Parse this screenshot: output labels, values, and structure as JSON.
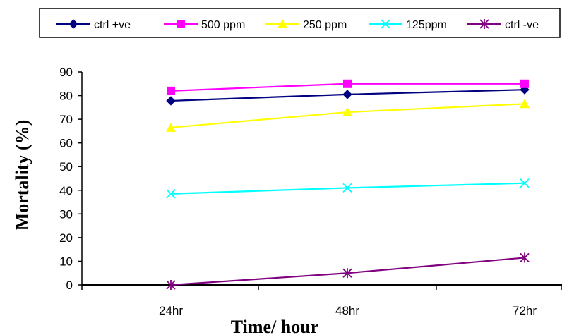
{
  "chart_data": {
    "type": "line",
    "title": "",
    "xlabel": "Time/ hour",
    "ylabel": "Mortality (%)",
    "categories": [
      "24hr",
      "48hr",
      "72hr"
    ],
    "ylim": [
      0,
      90
    ],
    "yticks": [
      0,
      10,
      20,
      30,
      40,
      50,
      60,
      70,
      80,
      90
    ],
    "grid": false,
    "legend_position": "top",
    "series": [
      {
        "name": "ctrl +ve",
        "values": [
          77.8,
          80.5,
          82.5
        ],
        "color": "#000080",
        "marker": "diamond"
      },
      {
        "name": "500 ppm",
        "values": [
          82,
          85,
          85
        ],
        "color": "#ff00ff",
        "marker": "square"
      },
      {
        "name": "250 ppm",
        "values": [
          66.5,
          73,
          76.5
        ],
        "color": "#ffff00",
        "marker": "triangle"
      },
      {
        "name": "125ppm",
        "values": [
          38.5,
          41,
          43
        ],
        "color": "#00ffff",
        "marker": "x"
      },
      {
        "name": "ctrl -ve",
        "values": [
          0,
          5,
          11.5
        ],
        "color": "#800080",
        "marker": "star"
      }
    ]
  }
}
